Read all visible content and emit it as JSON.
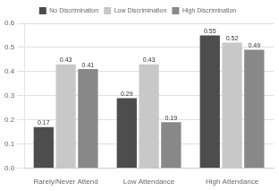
{
  "chart_data": {
    "type": "bar",
    "categories": [
      "Rarely/Never Attend",
      "Low Attendance",
      "High Attendance"
    ],
    "series": [
      {
        "name": "No Discrimination",
        "color": "#4d4d4d",
        "values": [
          0.17,
          0.29,
          0.55
        ]
      },
      {
        "name": "Low Discrimination",
        "color": "#c8c8c8",
        "values": [
          0.43,
          0.43,
          0.52
        ]
      },
      {
        "name": "High Discrimination",
        "color": "#888888",
        "values": [
          0.41,
          0.19,
          0.49
        ]
      }
    ],
    "ylim": [
      0,
      0.6
    ],
    "yticks": [
      {
        "value": 0,
        "label": "0.0"
      },
      0.1,
      0.2,
      0.3,
      0.4,
      0.5,
      0.6
    ],
    "grid": true,
    "legend": "top",
    "data_labels": true
  }
}
